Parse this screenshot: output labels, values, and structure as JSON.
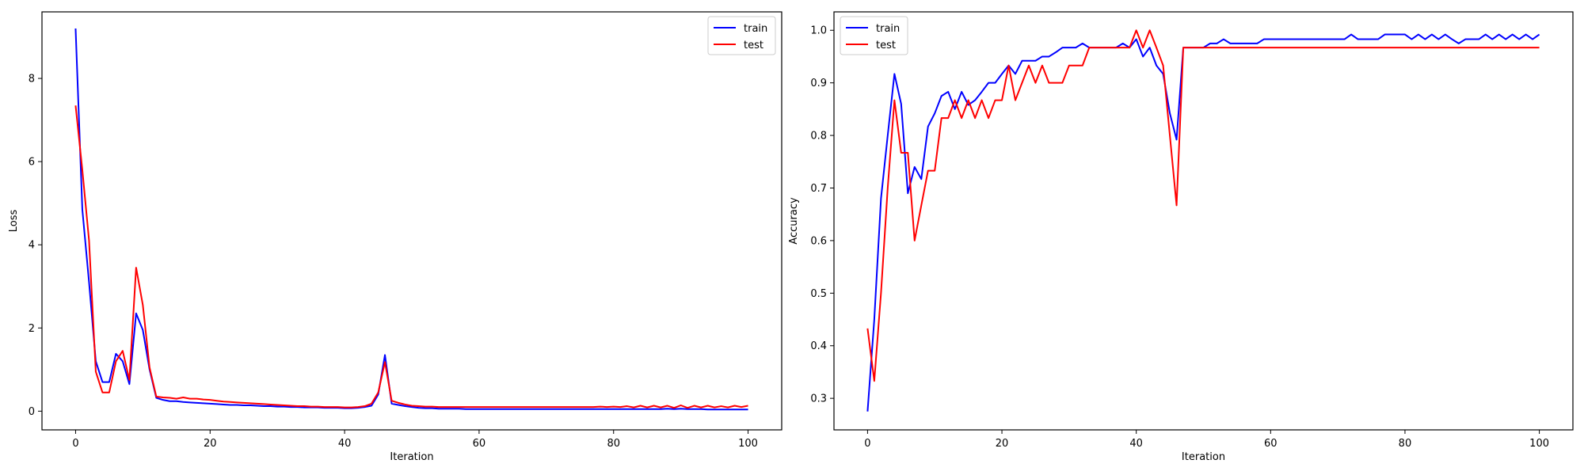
{
  "chart_data": [
    {
      "type": "line",
      "title": "",
      "xlabel": "Iteration",
      "ylabel": "Loss",
      "xlim": [
        -5,
        105
      ],
      "ylim": [
        -0.45,
        9.6
      ],
      "xticks": [
        0,
        20,
        40,
        60,
        80,
        100
      ],
      "yticks": [
        0,
        2,
        4,
        6,
        8
      ],
      "grid": false,
      "legend": "top-right",
      "series": [
        {
          "name": "train",
          "color": "#0000ff",
          "x": [
            0,
            1,
            2,
            3,
            4,
            5,
            6,
            7,
            8,
            9,
            10,
            11,
            12,
            13,
            14,
            15,
            16,
            17,
            18,
            19,
            20,
            21,
            22,
            23,
            24,
            25,
            26,
            27,
            28,
            29,
            30,
            31,
            32,
            33,
            34,
            35,
            36,
            37,
            38,
            39,
            40,
            41,
            42,
            43,
            44,
            45,
            46,
            47,
            48,
            49,
            50,
            51,
            52,
            53,
            54,
            55,
            56,
            57,
            58,
            59,
            60,
            61,
            62,
            63,
            64,
            65,
            66,
            67,
            68,
            69,
            70,
            71,
            72,
            73,
            74,
            75,
            76,
            77,
            78,
            79,
            80,
            81,
            82,
            83,
            84,
            85,
            86,
            87,
            88,
            89,
            90,
            91,
            92,
            93,
            94,
            95,
            96,
            97,
            98,
            99,
            100
          ],
          "y": [
            9.2,
            4.85,
            3.1,
            1.2,
            0.7,
            0.7,
            1.38,
            1.2,
            0.65,
            2.35,
            1.95,
            1.0,
            0.32,
            0.27,
            0.24,
            0.24,
            0.22,
            0.21,
            0.2,
            0.19,
            0.18,
            0.17,
            0.16,
            0.15,
            0.15,
            0.14,
            0.14,
            0.13,
            0.12,
            0.12,
            0.11,
            0.11,
            0.1,
            0.1,
            0.09,
            0.09,
            0.09,
            0.08,
            0.08,
            0.08,
            0.07,
            0.07,
            0.08,
            0.1,
            0.13,
            0.4,
            1.35,
            0.18,
            0.15,
            0.12,
            0.1,
            0.08,
            0.07,
            0.07,
            0.06,
            0.06,
            0.06,
            0.06,
            0.05,
            0.05,
            0.05,
            0.05,
            0.05,
            0.05,
            0.05,
            0.05,
            0.05,
            0.05,
            0.05,
            0.05,
            0.05,
            0.05,
            0.05,
            0.05,
            0.05,
            0.05,
            0.05,
            0.05,
            0.05,
            0.05,
            0.05,
            0.05,
            0.05,
            0.05,
            0.05,
            0.05,
            0.05,
            0.05,
            0.06,
            0.05,
            0.06,
            0.05,
            0.05,
            0.05,
            0.04,
            0.04,
            0.04,
            0.04,
            0.04,
            0.04,
            0.04
          ]
        },
        {
          "name": "test",
          "color": "#ff0000",
          "x": [
            0,
            1,
            2,
            3,
            4,
            5,
            6,
            7,
            8,
            9,
            10,
            11,
            12,
            13,
            14,
            15,
            16,
            17,
            18,
            19,
            20,
            21,
            22,
            23,
            24,
            25,
            26,
            27,
            28,
            29,
            30,
            31,
            32,
            33,
            34,
            35,
            36,
            37,
            38,
            39,
            40,
            41,
            42,
            43,
            44,
            45,
            46,
            47,
            48,
            49,
            50,
            51,
            52,
            53,
            54,
            55,
            56,
            57,
            58,
            59,
            60,
            61,
            62,
            63,
            64,
            65,
            66,
            67,
            68,
            69,
            70,
            71,
            72,
            73,
            74,
            75,
            76,
            77,
            78,
            79,
            80,
            81,
            82,
            83,
            84,
            85,
            86,
            87,
            88,
            89,
            90,
            91,
            92,
            93,
            94,
            95,
            96,
            97,
            98,
            99,
            100
          ],
          "y": [
            7.35,
            5.8,
            4.1,
            0.95,
            0.45,
            0.45,
            1.2,
            1.45,
            0.75,
            3.45,
            2.55,
            1.05,
            0.35,
            0.33,
            0.32,
            0.3,
            0.33,
            0.3,
            0.3,
            0.28,
            0.27,
            0.25,
            0.23,
            0.22,
            0.21,
            0.2,
            0.19,
            0.18,
            0.17,
            0.16,
            0.15,
            0.14,
            0.13,
            0.12,
            0.12,
            0.11,
            0.11,
            0.1,
            0.1,
            0.1,
            0.09,
            0.09,
            0.1,
            0.12,
            0.18,
            0.45,
            1.18,
            0.25,
            0.2,
            0.16,
            0.13,
            0.12,
            0.11,
            0.11,
            0.1,
            0.1,
            0.1,
            0.1,
            0.1,
            0.1,
            0.1,
            0.1,
            0.1,
            0.1,
            0.1,
            0.1,
            0.1,
            0.1,
            0.1,
            0.1,
            0.1,
            0.1,
            0.1,
            0.1,
            0.1,
            0.1,
            0.1,
            0.1,
            0.11,
            0.1,
            0.11,
            0.1,
            0.12,
            0.09,
            0.13,
            0.09,
            0.13,
            0.09,
            0.13,
            0.08,
            0.14,
            0.08,
            0.13,
            0.09,
            0.13,
            0.09,
            0.12,
            0.09,
            0.13,
            0.1,
            0.13
          ]
        }
      ]
    },
    {
      "type": "line",
      "title": "",
      "xlabel": "Iteration",
      "ylabel": "Accuracy",
      "xlim": [
        -5,
        105
      ],
      "ylim": [
        0.24,
        1.035
      ],
      "xticks": [
        0,
        20,
        40,
        60,
        80,
        100
      ],
      "yticks": [
        0.3,
        0.4,
        0.5,
        0.6,
        0.7,
        0.8,
        0.9,
        1.0
      ],
      "grid": false,
      "legend": "top-left",
      "series": [
        {
          "name": "train",
          "color": "#0000ff",
          "x": [
            0,
            1,
            2,
            3,
            4,
            5,
            6,
            7,
            8,
            9,
            10,
            11,
            12,
            13,
            14,
            15,
            16,
            17,
            18,
            19,
            20,
            21,
            22,
            23,
            24,
            25,
            26,
            27,
            28,
            29,
            30,
            31,
            32,
            33,
            34,
            35,
            36,
            37,
            38,
            39,
            40,
            41,
            42,
            43,
            44,
            45,
            46,
            47,
            48,
            49,
            50,
            51,
            52,
            53,
            54,
            55,
            56,
            57,
            58,
            59,
            60,
            61,
            62,
            63,
            64,
            65,
            66,
            67,
            68,
            69,
            70,
            71,
            72,
            73,
            74,
            75,
            76,
            77,
            78,
            79,
            80,
            81,
            82,
            83,
            84,
            85,
            86,
            87,
            88,
            89,
            90,
            91,
            92,
            93,
            94,
            95,
            96,
            97,
            98,
            99,
            100
          ],
          "y": [
            0.275,
            0.45,
            0.68,
            0.8,
            0.917,
            0.86,
            0.69,
            0.74,
            0.717,
            0.817,
            0.842,
            0.875,
            0.883,
            0.85,
            0.883,
            0.858,
            0.867,
            0.883,
            0.9,
            0.9,
            0.917,
            0.933,
            0.917,
            0.942,
            0.942,
            0.942,
            0.95,
            0.95,
            0.958,
            0.967,
            0.967,
            0.967,
            0.975,
            0.967,
            0.967,
            0.967,
            0.967,
            0.967,
            0.975,
            0.967,
            0.983,
            0.95,
            0.967,
            0.933,
            0.917,
            0.842,
            0.792,
            0.967,
            0.967,
            0.967,
            0.967,
            0.975,
            0.975,
            0.983,
            0.975,
            0.975,
            0.975,
            0.975,
            0.975,
            0.983,
            0.983,
            0.983,
            0.983,
            0.983,
            0.983,
            0.983,
            0.983,
            0.983,
            0.983,
            0.983,
            0.983,
            0.983,
            0.992,
            0.983,
            0.983,
            0.983,
            0.983,
            0.992,
            0.992,
            0.992,
            0.992,
            0.983,
            0.992,
            0.983,
            0.992,
            0.983,
            0.992,
            0.983,
            0.975,
            0.983,
            0.983,
            0.983,
            0.992,
            0.983,
            0.992,
            0.983,
            0.992,
            0.983,
            0.992,
            0.983,
            0.992
          ]
        },
        {
          "name": "test",
          "color": "#ff0000",
          "x": [
            0,
            1,
            2,
            3,
            4,
            5,
            6,
            7,
            8,
            9,
            10,
            11,
            12,
            13,
            14,
            15,
            16,
            17,
            18,
            19,
            20,
            21,
            22,
            23,
            24,
            25,
            26,
            27,
            28,
            29,
            30,
            31,
            32,
            33,
            34,
            35,
            36,
            37,
            38,
            39,
            40,
            41,
            42,
            43,
            44,
            45,
            46,
            47,
            48,
            49,
            50,
            51,
            52,
            53,
            54,
            55,
            56,
            57,
            58,
            59,
            60,
            61,
            62,
            63,
            64,
            65,
            66,
            67,
            68,
            69,
            70,
            71,
            72,
            73,
            74,
            75,
            76,
            77,
            78,
            79,
            80,
            81,
            82,
            83,
            84,
            85,
            86,
            87,
            88,
            89,
            90,
            91,
            92,
            93,
            94,
            95,
            96,
            97,
            98,
            99,
            100
          ],
          "y": [
            0.433,
            0.333,
            0.5,
            0.7,
            0.867,
            0.767,
            0.767,
            0.6,
            0.667,
            0.733,
            0.733,
            0.833,
            0.833,
            0.867,
            0.833,
            0.867,
            0.833,
            0.867,
            0.833,
            0.867,
            0.867,
            0.933,
            0.867,
            0.9,
            0.933,
            0.9,
            0.933,
            0.9,
            0.9,
            0.9,
            0.933,
            0.933,
            0.933,
            0.967,
            0.967,
            0.967,
            0.967,
            0.967,
            0.967,
            0.967,
            1.0,
            0.967,
            1.0,
            0.967,
            0.933,
            0.8,
            0.667,
            0.967,
            0.967,
            0.967,
            0.967,
            0.967,
            0.967,
            0.967,
            0.967,
            0.967,
            0.967,
            0.967,
            0.967,
            0.967,
            0.967,
            0.967,
            0.967,
            0.967,
            0.967,
            0.967,
            0.967,
            0.967,
            0.967,
            0.967,
            0.967,
            0.967,
            0.967,
            0.967,
            0.967,
            0.967,
            0.967,
            0.967,
            0.967,
            0.967,
            0.967,
            0.967,
            0.967,
            0.967,
            0.967,
            0.967,
            0.967,
            0.967,
            0.967,
            0.967,
            0.967,
            0.967,
            0.967,
            0.967,
            0.967,
            0.967,
            0.967,
            0.967,
            0.967,
            0.967,
            0.967
          ]
        }
      ]
    }
  ]
}
